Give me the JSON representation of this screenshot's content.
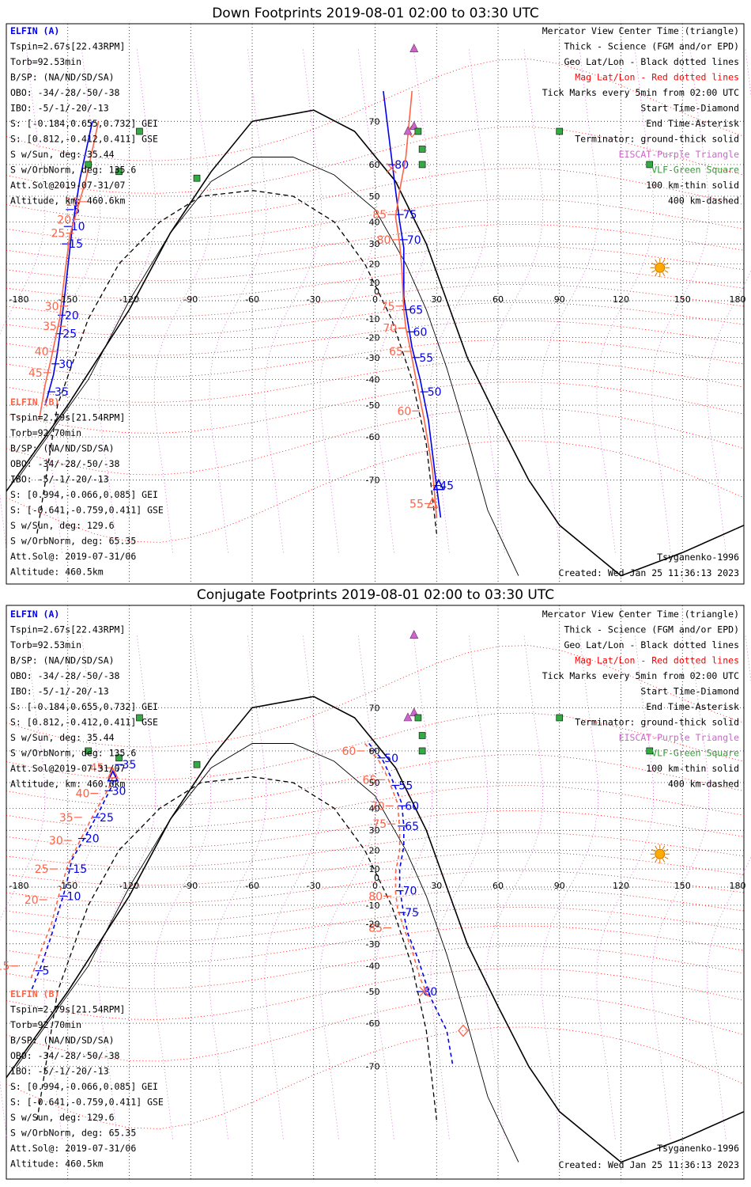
{
  "colors": {
    "blue": "#0000ee",
    "red": "#ff6347",
    "purple": "#cc66cc",
    "green": "#339933",
    "magdot": "#ff0000",
    "geodot": "#000000"
  },
  "chart_data": [
    {
      "type": "map-plot",
      "title": "Down Footprints 2019-08-01 02:00 to 03:30 UTC",
      "projection": "Mercator",
      "x_ticks": [
        "-180",
        "-150",
        "-120",
        "-90",
        "-60",
        "-30",
        "0",
        "30",
        "60",
        "90",
        "120",
        "150",
        "180"
      ],
      "y_ticks": [
        "70",
        "60",
        "50",
        "40",
        "30",
        "20",
        "10",
        "0",
        "-10",
        "-20",
        "-30",
        "-40",
        "-50",
        "-60",
        "-70"
      ],
      "sat_a": {
        "header": "ELFIN (A)",
        "lines": [
          "Tspin=2.67s[22.43RPM]",
          "Torb=92.53min",
          "B/SP: (NA/ND/SD/SA)",
          "OBO: -34/-28/-50/-38",
          "IBO: -5/-1/-20/-13",
          "S: [-0.184,0.655,0.732] GEI",
          "S: [0.812,-0.412,0.411] GSE",
          "S w/Sun, deg: 35.44",
          "S w/OrbNorm, deg: 135.6",
          "Att.Sol@2019-07-31/07",
          "Altitude, km: 460.6km"
        ],
        "track_seg1": [
          [
            -138,
            70
          ],
          [
            -144,
            56
          ],
          [
            -148,
            36
          ],
          [
            -152,
            -2
          ],
          [
            -155,
            -27
          ],
          [
            -157,
            -38
          ],
          [
            -161,
            -50
          ]
        ],
        "track_seg2": [
          [
            4,
            75
          ],
          [
            8,
            62
          ],
          [
            10,
            52
          ],
          [
            12,
            40
          ],
          [
            14,
            28
          ],
          [
            14,
            16
          ],
          [
            14,
            2
          ],
          [
            16,
            -12
          ],
          [
            18,
            -25
          ],
          [
            22,
            -40
          ],
          [
            26,
            -55
          ],
          [
            29,
            -68
          ],
          [
            32,
            -76
          ]
        ],
        "tick_labels": [
          {
            "lon": -149,
            "lat": 45,
            "t": "5"
          },
          {
            "lon": -150,
            "lat": 38,
            "t": "10"
          },
          {
            "lon": -151,
            "lat": 30,
            "t": "15"
          },
          {
            "lon": -153,
            "lat": -8,
            "t": "20"
          },
          {
            "lon": -154,
            "lat": -18,
            "t": "25"
          },
          {
            "lon": -156,
            "lat": -33,
            "t": "30"
          },
          {
            "lon": -158,
            "lat": -45,
            "t": "35"
          },
          {
            "lon": 8,
            "lat": 60,
            "t": "80"
          },
          {
            "lon": 12,
            "lat": 43,
            "t": "75"
          },
          {
            "lon": 14,
            "lat": 32,
            "t": "70"
          },
          {
            "lon": 15,
            "lat": -5,
            "t": "65"
          },
          {
            "lon": 17,
            "lat": -17,
            "t": "60"
          },
          {
            "lon": 20,
            "lat": -30,
            "t": "55"
          },
          {
            "lon": 24,
            "lat": -45,
            "t": "50"
          },
          {
            "lon": 30,
            "lat": -71,
            "t": "45"
          }
        ],
        "center_triangle": [
          31,
          -71
        ]
      },
      "sat_b": {
        "header": "ELFIN (B)",
        "lines": [
          "Tspin=2.79s[21.54RPM]",
          "Torb=92.70min",
          "B/SP: (NA/ND/SD/SA)",
          "OBO: -34/-28/-50/-38",
          "IBO: -5/-1/-20/-13",
          "S: [0.994,-0.066,0.085] GEI",
          "S: [-0.641,-0.759,0.411] GSE",
          "S w/Sun, deg: 129.6",
          "S w/OrbNorm, deg: 65.35",
          "Att.Sol@: 2019-07-31/06",
          "Altitude: 460.5km"
        ],
        "track_seg1": [
          [
            -135,
            70
          ],
          [
            -141,
            56
          ],
          [
            -145,
            46
          ],
          [
            -149,
            34
          ],
          [
            -152,
            10
          ],
          [
            -154,
            -10
          ],
          [
            -158,
            -30
          ],
          [
            -161,
            -42
          ],
          [
            -164,
            -55
          ]
        ],
        "track_seg2": [
          [
            18,
            75
          ],
          [
            15,
            62
          ],
          [
            12,
            52
          ],
          [
            10,
            42
          ],
          [
            12,
            30
          ],
          [
            13,
            18
          ],
          [
            14,
            -5
          ],
          [
            15,
            -15
          ],
          [
            17,
            -25
          ],
          [
            20,
            -40
          ],
          [
            24,
            -55
          ],
          [
            28,
            -68
          ],
          [
            30,
            -76
          ]
        ],
        "tick_labels": [
          {
            "lon": -142,
            "lat": 48,
            "t": "15"
          },
          {
            "lon": -146,
            "lat": 41,
            "t": "20"
          },
          {
            "lon": -149,
            "lat": 35,
            "t": "25"
          },
          {
            "lon": -152,
            "lat": -3,
            "t": "30"
          },
          {
            "lon": -153,
            "lat": -14,
            "t": "35"
          },
          {
            "lon": -157,
            "lat": -27,
            "t": "40"
          },
          {
            "lon": -160,
            "lat": -37,
            "t": "45"
          },
          {
            "lon": 8,
            "lat": 43,
            "t": "85"
          },
          {
            "lon": 10,
            "lat": 32,
            "t": "80"
          },
          {
            "lon": 12,
            "lat": -3,
            "t": "75"
          },
          {
            "lon": 13,
            "lat": -15,
            "t": "70"
          },
          {
            "lon": 16,
            "lat": -27,
            "t": "65"
          },
          {
            "lon": 20,
            "lat": -52,
            "t": "60"
          },
          {
            "lon": 26,
            "lat": -74,
            "t": "55"
          }
        ],
        "diamond": [
          18,
          68
        ],
        "asterisk": [
          8,
          59
        ],
        "triangle": [
          28,
          -74
        ]
      },
      "legend_right": [
        "Mercator View Center Time (triangle)",
        "Thick - Science (FGM and/or EPD)",
        "Geo Lat/Lon - Black dotted lines",
        "Mag Lat/Lon - Red dotted lines",
        "Tick Marks every 5min from 02:00 UTC",
        "Start Time-Diamond",
        "End Time-Asterisk",
        "Terminator: ground-thick solid",
        "EISCAT-Purple Triangle",
        "VLF-Green Square",
        "100 km-thin solid",
        "400 km-dashed"
      ],
      "model": "Tsyganenko-1996",
      "created": "Created: Wed Jan 25 11:36:13 2023",
      "sun": [
        139,
        18
      ]
    },
    {
      "type": "map-plot",
      "title": "Conjugate Footprints 2019-08-01 02:00 to 03:30 UTC",
      "projection": "Mercator",
      "x_ticks": [
        "-180",
        "-150",
        "-120",
        "-90",
        "-60",
        "-30",
        "0",
        "30",
        "60",
        "90",
        "120",
        "150",
        "180"
      ],
      "y_ticks": [
        "70",
        "60",
        "50",
        "40",
        "30",
        "20",
        "10",
        "0",
        "-10",
        "-20",
        "-30",
        "-40",
        "-50",
        "-60",
        "-70"
      ],
      "sat_a": {
        "header": "ELFIN (A)",
        "lines": [
          "Tspin=2.67s[22.43RPM]",
          "Torb=92.53min",
          "B/SP: (NA/ND/SD/SA)",
          "OBO: -34/-28/-50/-38",
          "IBO: -5/-1/-20/-13",
          "S: [-0.184,0.655,0.732] GEI",
          "S: [0.812,-0.412,0.411] GSE",
          "S w/Sun, deg: 35.44",
          "S w/OrbNorm, deg: 135.6",
          "Att.Sol@2019-07-31/07",
          "Altitude, km: 460.6km"
        ],
        "track_seg1": [
          [
            -125,
            55
          ],
          [
            -129,
            48
          ],
          [
            -135,
            38
          ],
          [
            -142,
            26
          ],
          [
            -148,
            15
          ],
          [
            -151,
            0
          ],
          [
            -155,
            -15
          ],
          [
            -158,
            -26
          ],
          [
            -163,
            -40
          ],
          [
            -168,
            -50
          ]
        ],
        "track_seg2": [
          [
            -3,
            62
          ],
          [
            4,
            57
          ],
          [
            9,
            50
          ],
          [
            13,
            42
          ],
          [
            14,
            32
          ],
          [
            14,
            22
          ],
          [
            12,
            10
          ],
          [
            12,
            0
          ],
          [
            13,
            -8
          ],
          [
            14,
            -15
          ],
          [
            16,
            -25
          ],
          [
            21,
            -37
          ],
          [
            27,
            -52
          ],
          [
            35,
            -62
          ],
          [
            38,
            -70
          ]
        ],
        "tick_labels": [
          {
            "lon": -125,
            "lat": 56,
            "t": "35"
          },
          {
            "lon": -130,
            "lat": 47,
            "t": "30"
          },
          {
            "lon": -136,
            "lat": 36,
            "t": "25"
          },
          {
            "lon": -143,
            "lat": 26,
            "t": "20"
          },
          {
            "lon": -149,
            "lat": 10,
            "t": "15"
          },
          {
            "lon": -152,
            "lat": -5,
            "t": "10"
          },
          {
            "lon": -164,
            "lat": -42,
            "t": "5"
          },
          {
            "lon": 3,
            "lat": 58,
            "t": "50"
          },
          {
            "lon": 10,
            "lat": 49,
            "t": "55"
          },
          {
            "lon": 13,
            "lat": 41,
            "t": "60"
          },
          {
            "lon": 13,
            "lat": 32,
            "t": "65"
          },
          {
            "lon": 12,
            "lat": -2,
            "t": "70"
          },
          {
            "lon": 13,
            "lat": -14,
            "t": "75"
          },
          {
            "lon": 22,
            "lat": -50,
            "t": "80"
          }
        ],
        "center_triangle": [
          -128,
          52
        ]
      },
      "sat_b": {
        "header": "ELFIN (B)",
        "lines": [
          "Tspin=2.79s[21.54RPM]",
          "Torb=92.70min",
          "B/SP: (NA/ND/SD/SA)",
          "OBO: -34/-28/-50/-38",
          "IBO: -5/-1/-20/-13",
          "S: [0.994,-0.066,0.085] GEI",
          "S: [-0.641,-0.759,0.411] GSE",
          "S w/Sun, deg: 129.6",
          "S w/OrbNorm, deg: 65.35",
          "Att.Sol@: 2019-07-31/06",
          "Altitude: 460.5km"
        ],
        "track_seg1": [
          [
            -127,
            54
          ],
          [
            -130,
            48
          ],
          [
            -137,
            38
          ],
          [
            -144,
            25
          ],
          [
            -150,
            12
          ],
          [
            -154,
            -3
          ],
          [
            -158,
            -20
          ],
          [
            -163,
            -33
          ],
          [
            -168,
            -45
          ]
        ],
        "track_seg2": [
          [
            -5,
            62
          ],
          [
            2,
            57
          ],
          [
            6,
            52
          ],
          [
            11,
            42
          ],
          [
            12,
            30
          ],
          [
            12,
            20
          ],
          [
            10,
            8
          ],
          [
            10,
            -3
          ],
          [
            11,
            -12
          ],
          [
            14,
            -22
          ],
          [
            18,
            -33
          ],
          [
            22,
            -45
          ],
          [
            26,
            -52
          ]
        ],
        "tick_labels": [
          {
            "lon": -130,
            "lat": 55,
            "t": "45"
          },
          {
            "lon": -137,
            "lat": 46,
            "t": "40"
          },
          {
            "lon": -145,
            "lat": 36,
            "t": "35"
          },
          {
            "lon": -150,
            "lat": 25,
            "t": "30"
          },
          {
            "lon": -157,
            "lat": 10,
            "t": "25"
          },
          {
            "lon": -162,
            "lat": -7,
            "t": "20"
          },
          {
            "lon": -176,
            "lat": -40,
            "t": "15"
          },
          {
            "lon": -7,
            "lat": 60,
            "t": "60"
          },
          {
            "lon": 3,
            "lat": 51,
            "t": "65"
          },
          {
            "lon": 7,
            "lat": 41,
            "t": "70"
          },
          {
            "lon": 8,
            "lat": 33,
            "t": "75"
          },
          {
            "lon": 6,
            "lat": -5,
            "t": "80"
          },
          {
            "lon": 6,
            "lat": -22,
            "t": "85"
          }
        ],
        "diamond": [
          43,
          -62
        ],
        "asterisk": [
          24,
          -50
        ],
        "triangle": [
          -128,
          53
        ]
      },
      "legend_right": [
        "Mercator View Center Time (triangle)",
        "Thick - Science (FGM and/or EPD)",
        "Geo Lat/Lon - Black dotted lines",
        "Mag Lat/Lon - Red dotted lines",
        "Tick Marks every 5min from 02:00 UTC",
        "Start Time-Diamond",
        "End Time-Asterisk",
        "Terminator: ground-thick solid",
        "EISCAT-Purple Triangle",
        "VLF-Green Square",
        "100 km-thin solid",
        "400 km-dashed"
      ],
      "model": "Tsyganenko-1996",
      "created": "Created: Wed Jan 25 11:36:13 2023",
      "sun": [
        139,
        18
      ]
    }
  ],
  "eiscat": [
    [
      19,
      80
    ],
    [
      19,
      69
    ],
    [
      16,
      68
    ]
  ],
  "vlf": [
    [
      -115,
      68
    ],
    [
      -87,
      56
    ],
    [
      -140,
      60
    ],
    [
      -125,
      58
    ],
    [
      21,
      68
    ],
    [
      23,
      64
    ],
    [
      23,
      60
    ],
    [
      90,
      68
    ],
    [
      134,
      60
    ]
  ],
  "terminator_thick": [
    [
      -180,
      -72
    ],
    [
      -150,
      -50
    ],
    [
      -120,
      -5
    ],
    [
      -100,
      35
    ],
    [
      -80,
      58
    ],
    [
      -60,
      70
    ],
    [
      -30,
      72
    ],
    [
      -10,
      68
    ],
    [
      10,
      55
    ],
    [
      25,
      30
    ],
    [
      35,
      0
    ],
    [
      45,
      -30
    ],
    [
      60,
      -55
    ],
    [
      75,
      -70
    ],
    [
      90,
      -77
    ],
    [
      120,
      -82
    ],
    [
      150,
      -80
    ],
    [
      180,
      -77
    ]
  ],
  "terminator_100km": [
    [
      -175,
      -70
    ],
    [
      -140,
      -40
    ],
    [
      -120,
      0
    ],
    [
      -100,
      35
    ],
    [
      -80,
      55
    ],
    [
      -60,
      62
    ],
    [
      -40,
      62
    ],
    [
      -20,
      57
    ],
    [
      0,
      45
    ],
    [
      15,
      20
    ],
    [
      25,
      -5
    ],
    [
      35,
      -35
    ],
    [
      45,
      -60
    ],
    [
      55,
      -75
    ],
    [
      70,
      -82
    ]
  ],
  "terminator_400km": [
    [
      -165,
      -78
    ],
    [
      -155,
      -50
    ],
    [
      -140,
      -10
    ],
    [
      -125,
      20
    ],
    [
      -105,
      40
    ],
    [
      -85,
      50
    ],
    [
      -60,
      52
    ],
    [
      -40,
      50
    ],
    [
      -20,
      40
    ],
    [
      -5,
      20
    ],
    [
      8,
      -10
    ],
    [
      18,
      -40
    ],
    [
      25,
      -62
    ],
    [
      30,
      -78
    ]
  ],
  "mag_lat_curves": [
    [
      -180,
      70
    ],
    [
      -120,
      78
    ],
    [
      -60,
      80
    ],
    [
      0,
      76
    ],
    [
      60,
      74
    ],
    [
      120,
      70
    ],
    [
      180,
      70
    ]
  ]
}
